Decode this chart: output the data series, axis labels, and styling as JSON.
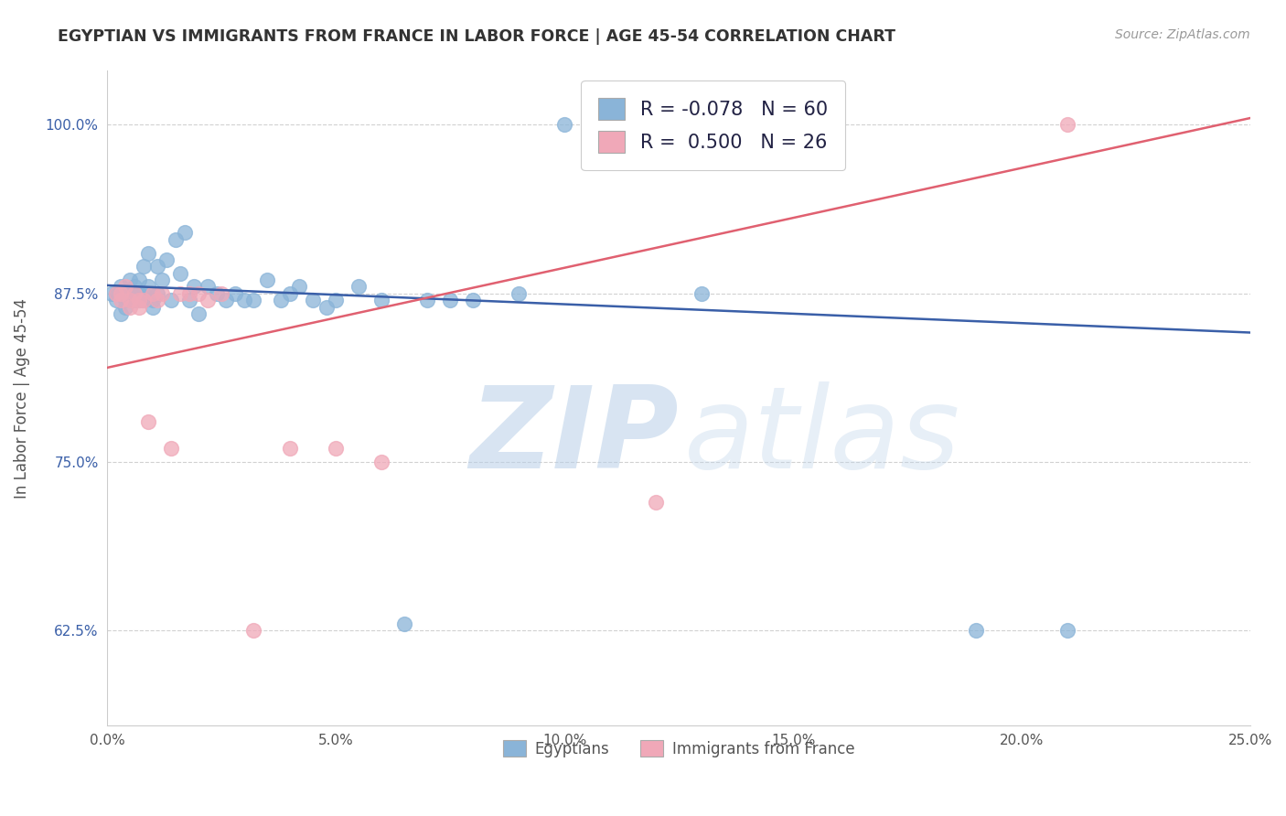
{
  "title": "EGYPTIAN VS IMMIGRANTS FROM FRANCE IN LABOR FORCE | AGE 45-54 CORRELATION CHART",
  "source": "Source: ZipAtlas.com",
  "ylabel": "In Labor Force | Age 45-54",
  "xlim": [
    0.0,
    0.25
  ],
  "ylim": [
    0.555,
    1.04
  ],
  "xticks": [
    0.0,
    0.05,
    0.1,
    0.15,
    0.2,
    0.25
  ],
  "yticks": [
    0.625,
    0.75,
    0.875,
    1.0
  ],
  "xticklabels": [
    "0.0%",
    "5.0%",
    "10.0%",
    "15.0%",
    "20.0%",
    "25.0%"
  ],
  "yticklabels": [
    "62.5%",
    "75.0%",
    "87.5%",
    "100.0%"
  ],
  "blue_R": "-0.078",
  "blue_N": "60",
  "pink_R": "0.500",
  "pink_N": "26",
  "blue_color": "#8ab4d8",
  "pink_color": "#f0a8b8",
  "blue_line_color": "#3a5fa8",
  "pink_line_color": "#e06070",
  "blue_line_y0": 0.881,
  "blue_line_y1": 0.846,
  "pink_line_y0": 0.82,
  "pink_line_y1": 1.005,
  "blue_scatter_x": [
    0.001,
    0.002,
    0.002,
    0.003,
    0.003,
    0.003,
    0.004,
    0.004,
    0.004,
    0.005,
    0.005,
    0.005,
    0.006,
    0.006,
    0.006,
    0.007,
    0.007,
    0.007,
    0.008,
    0.008,
    0.008,
    0.009,
    0.009,
    0.01,
    0.01,
    0.011,
    0.011,
    0.012,
    0.013,
    0.014,
    0.015,
    0.016,
    0.017,
    0.018,
    0.019,
    0.02,
    0.022,
    0.024,
    0.026,
    0.028,
    0.03,
    0.032,
    0.035,
    0.038,
    0.04,
    0.042,
    0.045,
    0.048,
    0.05,
    0.055,
    0.06,
    0.065,
    0.07,
    0.075,
    0.08,
    0.09,
    0.1,
    0.13,
    0.19,
    0.21
  ],
  "blue_scatter_y": [
    0.875,
    0.875,
    0.87,
    0.86,
    0.875,
    0.88,
    0.875,
    0.87,
    0.865,
    0.885,
    0.875,
    0.87,
    0.88,
    0.875,
    0.87,
    0.885,
    0.875,
    0.87,
    0.895,
    0.875,
    0.87,
    0.905,
    0.88,
    0.87,
    0.865,
    0.895,
    0.875,
    0.885,
    0.9,
    0.87,
    0.915,
    0.89,
    0.92,
    0.87,
    0.88,
    0.86,
    0.88,
    0.875,
    0.87,
    0.875,
    0.87,
    0.87,
    0.885,
    0.87,
    0.875,
    0.88,
    0.87,
    0.865,
    0.87,
    0.88,
    0.87,
    0.63,
    0.87,
    0.87,
    0.87,
    0.875,
    1.0,
    0.875,
    0.625,
    0.625
  ],
  "pink_scatter_x": [
    0.002,
    0.003,
    0.003,
    0.004,
    0.005,
    0.005,
    0.006,
    0.007,
    0.007,
    0.008,
    0.009,
    0.01,
    0.011,
    0.012,
    0.014,
    0.016,
    0.018,
    0.02,
    0.022,
    0.025,
    0.032,
    0.04,
    0.05,
    0.06,
    0.12,
    0.21
  ],
  "pink_scatter_y": [
    0.875,
    0.875,
    0.87,
    0.88,
    0.87,
    0.865,
    0.875,
    0.87,
    0.865,
    0.87,
    0.78,
    0.875,
    0.87,
    0.875,
    0.76,
    0.875,
    0.875,
    0.875,
    0.87,
    0.875,
    0.625,
    0.76,
    0.76,
    0.75,
    0.72,
    1.0
  ]
}
